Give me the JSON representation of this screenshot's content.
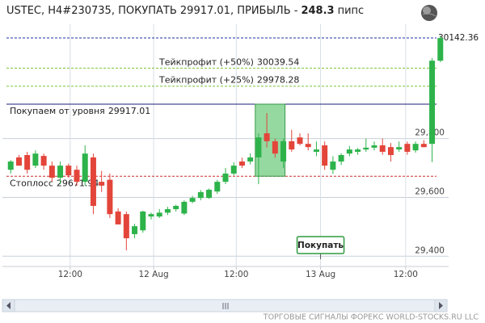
{
  "chart_data": {
    "type": "candlestick",
    "title": "USTEC, H4#230735, ПОКУПАТЬ 29917.01, ПРИБЫЛЬ -",
    "profit": 248.3,
    "profit_unit": "пипс",
    "up_color": "#2db34a",
    "down_color": "#e3453a",
    "open": [
      29694,
      29736,
      29744,
      29708,
      29741,
      29708,
      29667,
      29708,
      29694,
      29653,
      29736,
      29653,
      29660,
      29552,
      29543,
      29475,
      29488,
      29535,
      29535,
      29548,
      29560,
      29545,
      29585,
      29598,
      29598,
      29620,
      29653,
      29681,
      29722,
      29722,
      29736,
      29818,
      29791,
      29722,
      29791,
      29804,
      29782,
      29755,
      29777,
      29694,
      29722,
      29749,
      29755,
      29763,
      29769,
      29777,
      29771,
      29763,
      29782,
      29760,
      29782,
      29782,
      30065
    ],
    "high": [
      29727,
      29744,
      29755,
      29760,
      29749,
      29722,
      29722,
      29715,
      29708,
      29777,
      29749,
      29690,
      29681,
      29563,
      29552,
      29510,
      29555,
      29548,
      29560,
      29568,
      29575,
      29590,
      29605,
      29625,
      29630,
      29660,
      29700,
      29720,
      29735,
      29750,
      29818,
      29887,
      29800,
      29800,
      29830,
      29818,
      29818,
      29790,
      29790,
      29740,
      29750,
      29775,
      29768,
      29800,
      29790,
      29800,
      29785,
      29790,
      29790,
      29790,
      29795,
      30074,
      30150
    ],
    "low": [
      29681,
      29708,
      29681,
      29700,
      29694,
      29653,
      29645,
      29667,
      29640,
      29640,
      29543,
      29618,
      29530,
      29508,
      29420,
      29461,
      29480,
      29525,
      29530,
      29540,
      29552,
      29540,
      29580,
      29590,
      29595,
      29612,
      29645,
      29675,
      29700,
      29712,
      29645,
      29770,
      29735,
      29700,
      29755,
      29777,
      29760,
      29740,
      29694,
      29680,
      29710,
      29740,
      29745,
      29755,
      29760,
      29745,
      29722,
      29755,
      29745,
      29752,
      29770,
      29720,
      30060
    ],
    "close": [
      29722,
      29708,
      29694,
      29749,
      29708,
      29667,
      29708,
      29675,
      29653,
      29749,
      29571,
      29640,
      29543,
      29508,
      29461,
      29502,
      29552,
      29543,
      29548,
      29560,
      29571,
      29585,
      29598,
      29618,
      29626,
      29653,
      29681,
      29708,
      29708,
      29736,
      29804,
      29791,
      29749,
      29791,
      29763,
      29782,
      29771,
      29763,
      29708,
      29722,
      29744,
      29763,
      29763,
      29769,
      29777,
      29755,
      29744,
      29771,
      29755,
      29782,
      29771,
      30065,
      30142
    ],
    "xlim": [
      -1,
      53
    ],
    "xticks": [
      {
        "value": 7.2,
        "label": "12:00"
      },
      {
        "value": 17.3,
        "label": "12 Aug"
      },
      {
        "value": 27.3,
        "label": "12:00"
      },
      {
        "value": 37.5,
        "label": "13 Aug"
      },
      {
        "value": 47.8,
        "label": "12:00"
      }
    ],
    "ylim": [
      29365,
      30189
    ],
    "yticks": [
      {
        "value": 29400,
        "label": "29,400"
      },
      {
        "value": 29600,
        "label": "29,600"
      },
      {
        "value": 29800,
        "label": "29,800"
      }
    ],
    "grid": true,
    "levels": [
      {
        "value": 30142.36,
        "color": "#1f2fa0",
        "style": "dashed"
      },
      {
        "name": "Тейкпрофит (+50%)",
        "value": 30039.54,
        "color": "#7cc53a",
        "style": "dashed"
      },
      {
        "name": "Тейкпрофит (+25%)",
        "value": 29978.28,
        "color": "#7cc53a",
        "style": "dashed"
      },
      {
        "name": "Покупаем от уровня",
        "value": 29917.01,
        "color": "#1c1c7a",
        "style": "solid"
      },
      {
        "name": "Стоплосс",
        "value": 29671.94,
        "color": "#cc2b2b",
        "style": "dashed"
      }
    ],
    "button": "Покупать",
    "footer": "ТОРГОВЫЕ СИГНАЛЫ ФОРЕКС WORLD-STOCKS.RU LLC"
  }
}
